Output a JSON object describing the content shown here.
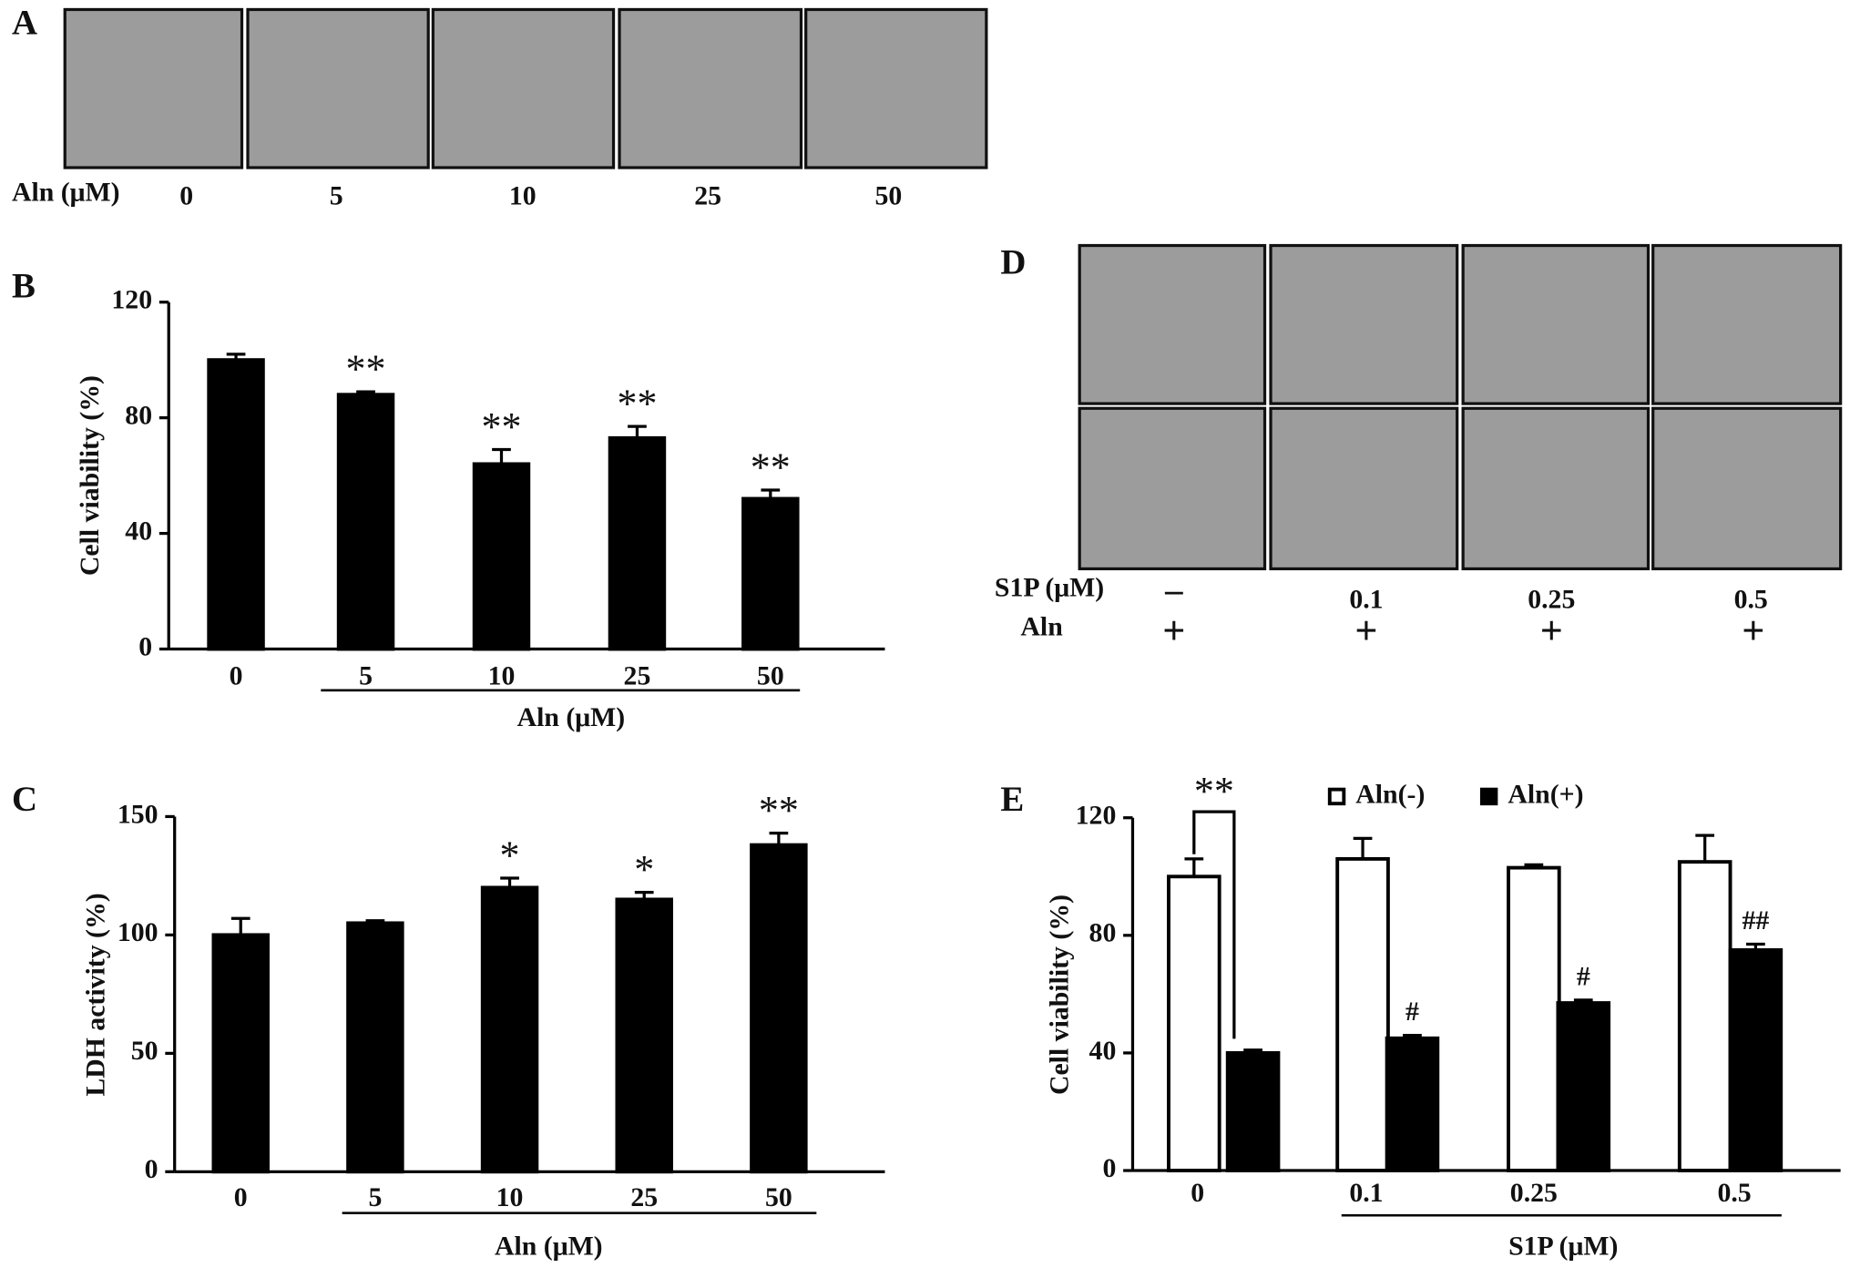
{
  "panel_a": {
    "letter": "A",
    "row_label": "Aln (μM)",
    "doses": [
      "0",
      "5",
      "10",
      "25",
      "50"
    ]
  },
  "panel_d": {
    "letter": "D",
    "row_labels": [
      "S1P (μM)",
      "Aln"
    ],
    "s1p": [
      "–",
      "0.1",
      "0.25",
      "0.5"
    ],
    "aln": [
      "+",
      "+",
      "+",
      "+"
    ]
  },
  "chart_data": [
    {
      "type": "bar",
      "panel": "B",
      "ylabel": "Cell viability (%)",
      "xlabel": "Aln (μM)",
      "categories": [
        "0",
        "5",
        "10",
        "25",
        "50"
      ],
      "values": [
        100,
        88,
        64,
        73,
        52
      ],
      "errors": [
        2,
        1,
        5,
        4,
        3
      ],
      "annotations": [
        null,
        "**",
        "**",
        "**",
        "**"
      ],
      "color": "#000000",
      "ylim": [
        0,
        120
      ],
      "yticks": [
        0,
        40,
        80,
        120
      ]
    },
    {
      "type": "bar",
      "panel": "C",
      "ylabel": "LDH activity (%)",
      "xlabel": "Aln (μM)",
      "categories": [
        "0",
        "5",
        "10",
        "25",
        "50"
      ],
      "values": [
        100,
        105,
        120,
        115,
        138
      ],
      "errors": [
        7,
        1,
        4,
        3,
        5
      ],
      "annotations": [
        null,
        null,
        "*",
        "*",
        "**"
      ],
      "color": "#000000",
      "ylim": [
        0,
        150
      ],
      "yticks": [
        0,
        50,
        100,
        150
      ]
    },
    {
      "type": "grouped_bar",
      "panel": "E",
      "ylabel": "Cell viability (%)",
      "xlabel": "S1P (μM)",
      "categories": [
        "0",
        "0.1",
        "0.25",
        "0.5"
      ],
      "comparison_label": "**",
      "series": [
        {
          "name": "Aln(-)",
          "color": "#ffffff",
          "values": [
            100,
            106,
            103,
            105
          ],
          "errors": [
            6,
            7,
            1,
            9
          ]
        },
        {
          "name": "Aln(+)",
          "color": "#000000",
          "values": [
            40,
            45,
            57,
            75
          ],
          "errors": [
            1,
            1,
            1,
            2
          ],
          "annotations": [
            null,
            "#",
            "#",
            "##"
          ]
        }
      ],
      "ylim": [
        0,
        120
      ],
      "yticks": [
        0,
        40,
        80,
        120
      ]
    }
  ]
}
